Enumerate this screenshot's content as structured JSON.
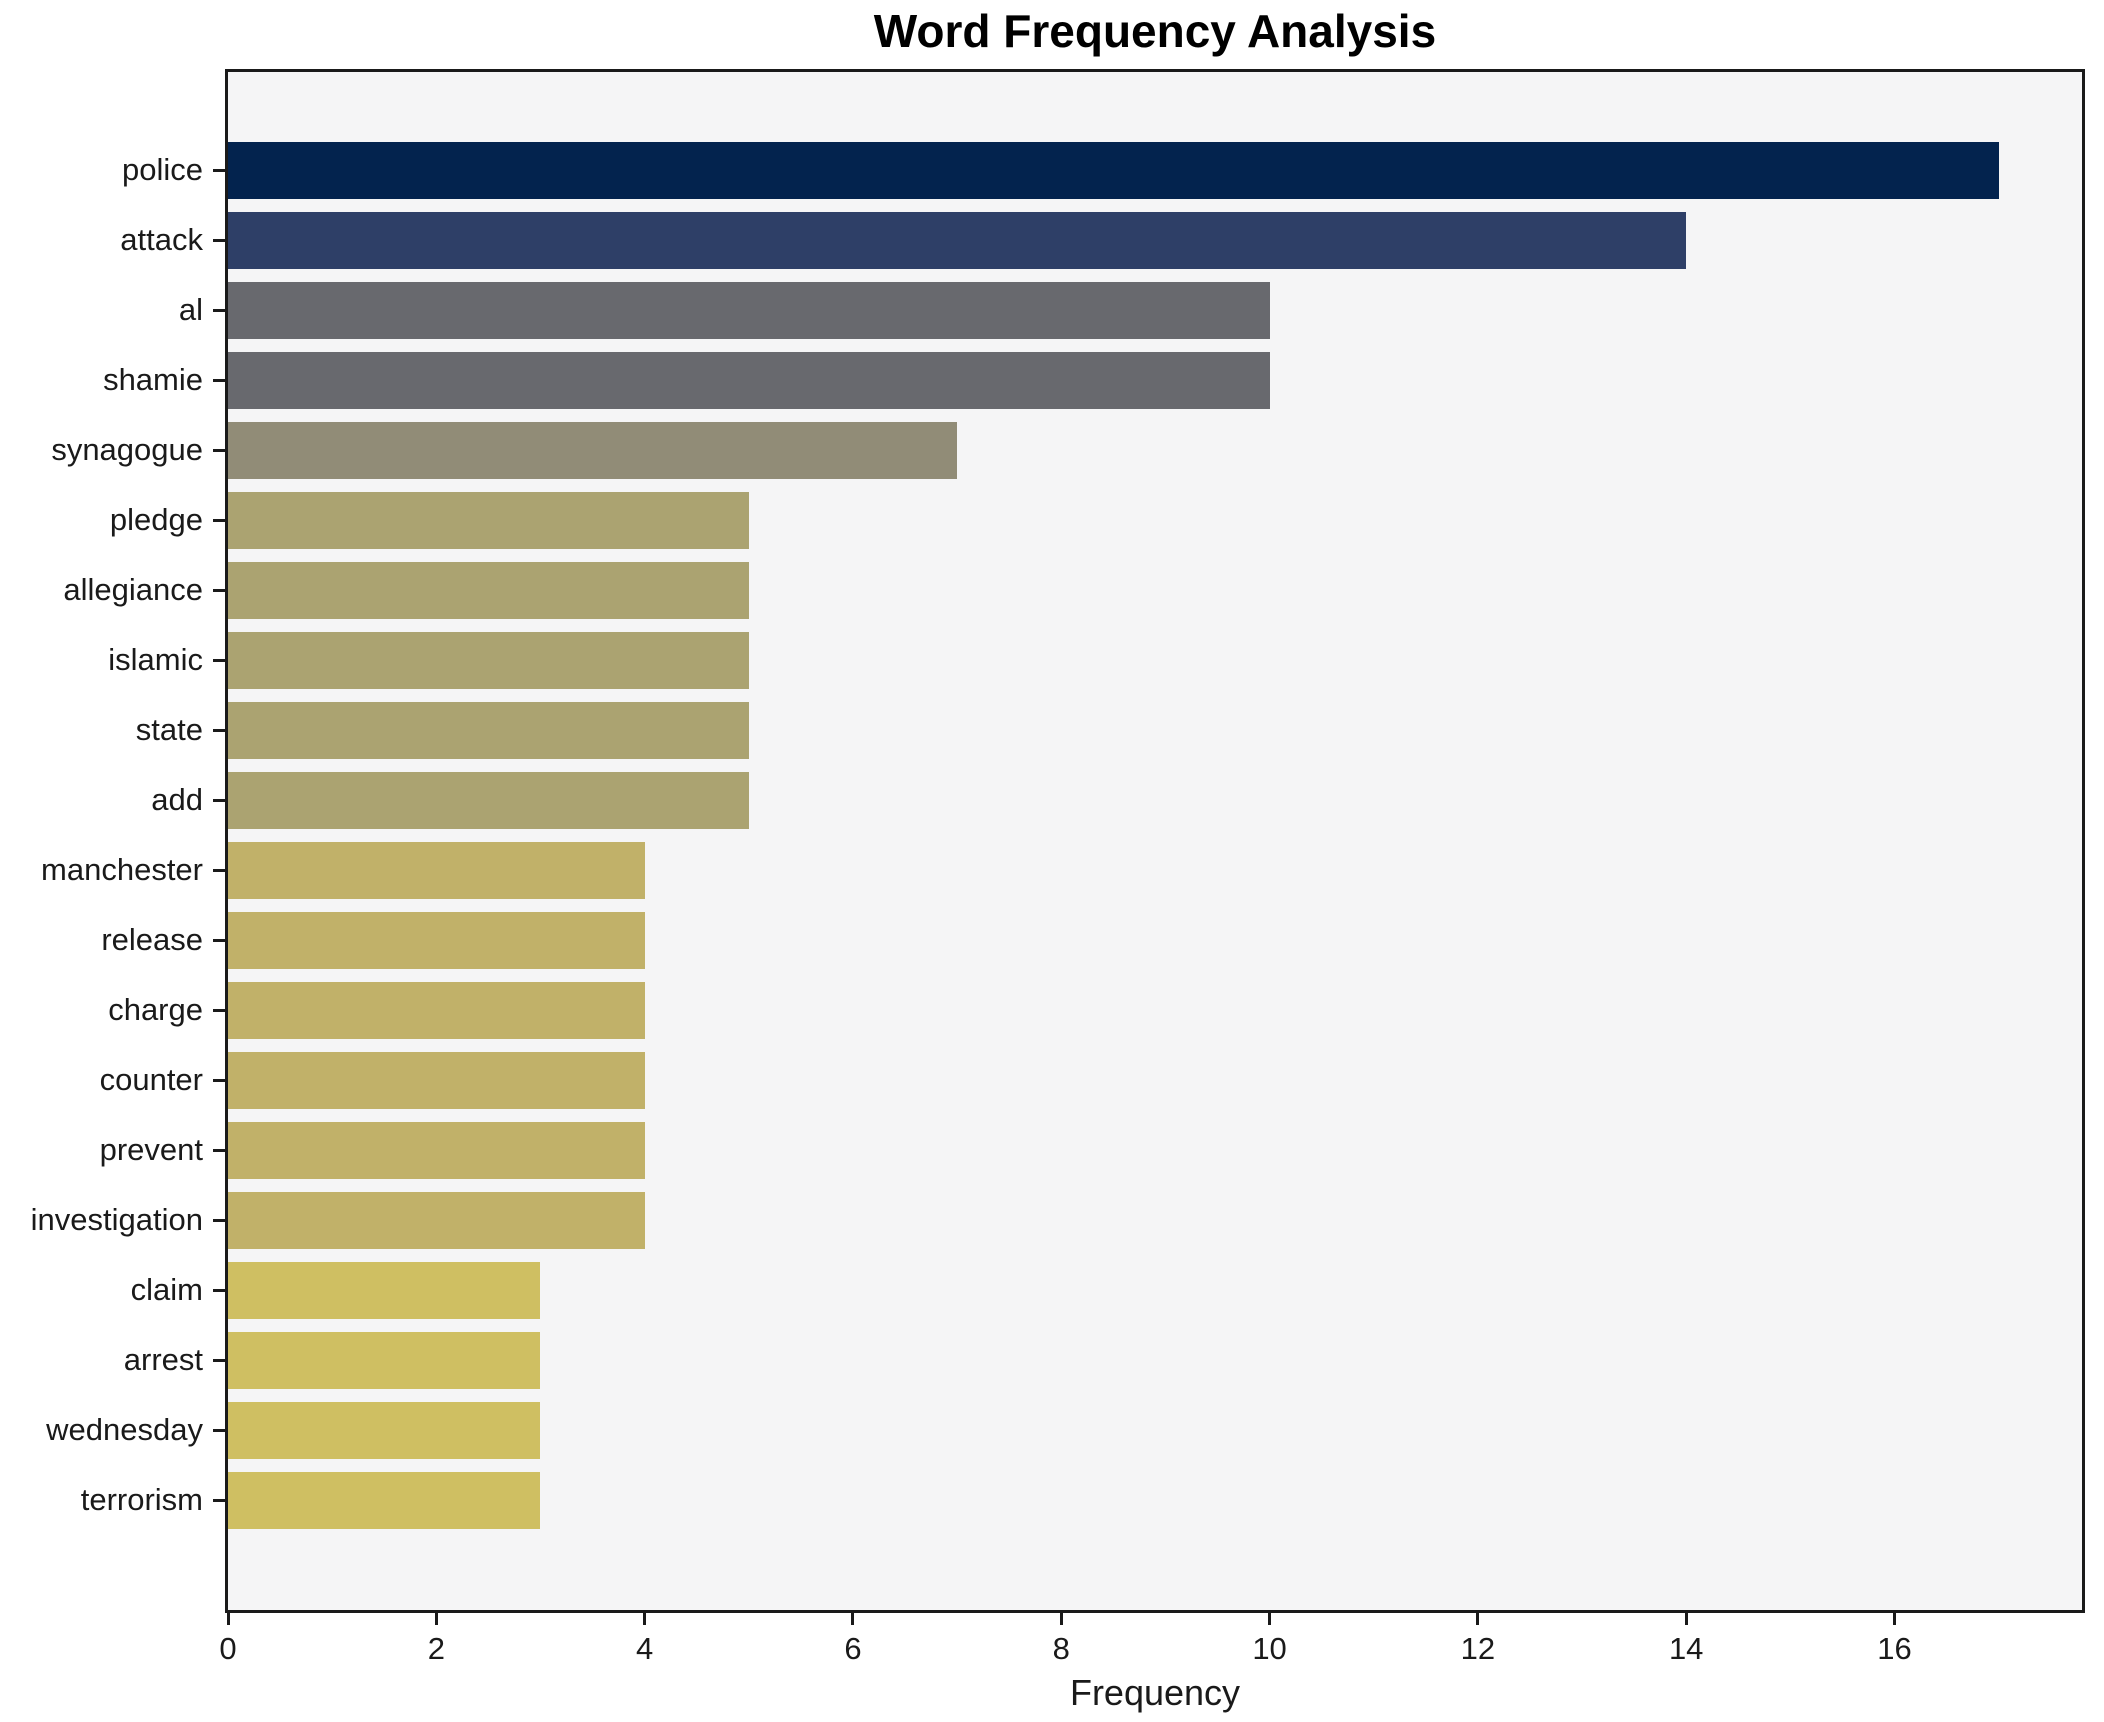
{
  "title": "Word Frequency Analysis",
  "chart_data": {
    "type": "bar",
    "orientation": "horizontal",
    "title": "Word Frequency Analysis",
    "xlabel": "Frequency",
    "ylabel": "",
    "xlim": [
      0,
      17.8
    ],
    "xticks": [
      0,
      2,
      4,
      6,
      8,
      10,
      12,
      14,
      16
    ],
    "grid": false,
    "legend_position": "none",
    "plot_background": "#f5f5f6",
    "figure_background": "#ffffff",
    "spine_color": "#1a1a1a",
    "text_color": "#1a1a1a",
    "categories": [
      "police",
      "attack",
      "al",
      "shamie",
      "synagogue",
      "pledge",
      "allegiance",
      "islamic",
      "state",
      "add",
      "manchester",
      "release",
      "charge",
      "counter",
      "prevent",
      "investigation",
      "claim",
      "arrest",
      "wednesday",
      "terrorism"
    ],
    "values": [
      17,
      14,
      10,
      10,
      7,
      5,
      5,
      5,
      5,
      5,
      4,
      4,
      4,
      4,
      4,
      4,
      3,
      3,
      3,
      3
    ],
    "bar_colors": [
      "#03234e",
      "#2e3f67",
      "#68696e",
      "#68696e",
      "#918c77",
      "#aba371",
      "#aba371",
      "#aba371",
      "#aba371",
      "#aba371",
      "#c1b169",
      "#c1b169",
      "#c1b169",
      "#c1b169",
      "#c1b169",
      "#c1b169",
      "#cfbf62",
      "#cfbf62",
      "#cfbf62",
      "#cfbf62"
    ]
  }
}
